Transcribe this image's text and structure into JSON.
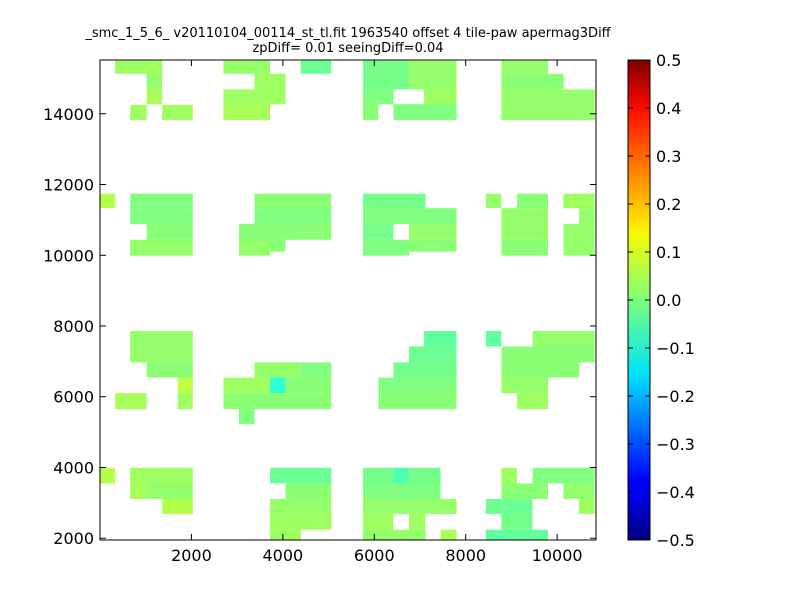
{
  "chart_data": {
    "type": "heatmap",
    "title": {
      "line1": "_smc_1_5_6_ v20110104_00114_st_tl.fit 1963540 offset 4 tile-paw apermag3Diff",
      "line2": "zpDiff= 0.01 seeingDiff=0.04"
    },
    "xlabel": "",
    "ylabel": "",
    "xlim": [
      0,
      10850
    ],
    "ylim": [
      1950,
      15520
    ],
    "x_ticks": [
      {
        "value": 2000,
        "label": "2000"
      },
      {
        "value": 4000,
        "label": "4000"
      },
      {
        "value": 6000,
        "label": "6000"
      },
      {
        "value": 8000,
        "label": "8000"
      },
      {
        "value": 10000,
        "label": "10000"
      }
    ],
    "y_ticks": [
      {
        "value": 2000,
        "label": "2000"
      },
      {
        "value": 4000,
        "label": "4000"
      },
      {
        "value": 6000,
        "label": "6000"
      },
      {
        "value": 8000,
        "label": "8000"
      },
      {
        "value": 10000,
        "label": "10000"
      },
      {
        "value": 12000,
        "label": "12000"
      },
      {
        "value": 14000,
        "label": "14000"
      }
    ],
    "colorbar": {
      "colormap": "jet",
      "range": [
        -0.5,
        0.5
      ],
      "ticks": [
        {
          "value": 0.5,
          "label": "0.5"
        },
        {
          "value": 0.4,
          "label": "0.4"
        },
        {
          "value": 0.3,
          "label": "0.3"
        },
        {
          "value": 0.2,
          "label": "0.2"
        },
        {
          "value": 0.1,
          "label": "0.1"
        },
        {
          "value": 0.0,
          "label": "0.0"
        },
        {
          "value": -0.1,
          "label": "−0.1"
        },
        {
          "value": -0.2,
          "label": "−0.2"
        },
        {
          "value": -0.3,
          "label": "−0.3"
        },
        {
          "value": -0.4,
          "label": "−0.4"
        },
        {
          "value": -0.5,
          "label": "−0.5"
        }
      ]
    },
    "grid": false,
    "cell_size": {
      "dx": 340,
      "dy": 440
    },
    "rects": [
      {
        "x0": 330,
        "x1": 1360,
        "y0": 15130,
        "y1": 15500,
        "v": 0.03
      },
      {
        "x0": 1020,
        "x1": 1360,
        "y0": 14690,
        "y1": 15130,
        "v": 0.02
      },
      {
        "x0": 1020,
        "x1": 1360,
        "y0": 14270,
        "y1": 14690,
        "v": 0.04
      },
      {
        "x0": 660,
        "x1": 1020,
        "y0": 13820,
        "y1": 14250,
        "v": 0.03
      },
      {
        "x0": 1360,
        "x1": 2030,
        "y0": 13820,
        "y1": 14250,
        "v": 0.03
      },
      {
        "x0": 2700,
        "x1": 3720,
        "y0": 15130,
        "y1": 15500,
        "v": 0.02
      },
      {
        "x0": 2700,
        "x1": 4060,
        "y0": 14270,
        "y1": 14690,
        "v": 0.03
      },
      {
        "x0": 2700,
        "x1": 3720,
        "y0": 13820,
        "y1": 14270,
        "v": 0.04
      },
      {
        "x0": 3380,
        "x1": 4060,
        "y0": 14690,
        "y1": 15130,
        "v": 0.03
      },
      {
        "x0": 4390,
        "x1": 5060,
        "y0": 15130,
        "y1": 15500,
        "v": -0.02
      },
      {
        "x0": 5750,
        "x1": 6760,
        "y0": 14690,
        "y1": 15500,
        "v": -0.01
      },
      {
        "x0": 6760,
        "x1": 7800,
        "y0": 14690,
        "y1": 15500,
        "v": 0.02
      },
      {
        "x0": 5750,
        "x1": 6420,
        "y0": 14270,
        "y1": 14690,
        "v": 0.0
      },
      {
        "x0": 7090,
        "x1": 7800,
        "y0": 14270,
        "y1": 14690,
        "v": 0.03
      },
      {
        "x0": 5750,
        "x1": 6090,
        "y0": 13820,
        "y1": 14270,
        "v": 0.01
      },
      {
        "x0": 6420,
        "x1": 7800,
        "y0": 13820,
        "y1": 14270,
        "v": 0.0
      },
      {
        "x0": 8780,
        "x1": 9800,
        "y0": 15130,
        "y1": 15500,
        "v": 0.02
      },
      {
        "x0": 8780,
        "x1": 10140,
        "y0": 14690,
        "y1": 15130,
        "v": 0.01
      },
      {
        "x0": 8780,
        "x1": 10820,
        "y0": 13820,
        "y1": 14690,
        "v": 0.02
      },
      {
        "x0": 0,
        "x1": 330,
        "y0": 11330,
        "y1": 11740,
        "v": 0.05
      },
      {
        "x0": 660,
        "x1": 2030,
        "y0": 11330,
        "y1": 11740,
        "v": 0.0
      },
      {
        "x0": 660,
        "x1": 2030,
        "y0": 10880,
        "y1": 11330,
        "v": 0.0
      },
      {
        "x0": 1020,
        "x1": 2030,
        "y0": 10440,
        "y1": 10880,
        "v": 0.01
      },
      {
        "x0": 660,
        "x1": 2030,
        "y0": 9990,
        "y1": 10440,
        "v": 0.02
      },
      {
        "x0": 3380,
        "x1": 5060,
        "y0": 11330,
        "y1": 11740,
        "v": 0.01
      },
      {
        "x0": 3380,
        "x1": 5060,
        "y0": 10880,
        "y1": 11330,
        "v": 0.0
      },
      {
        "x0": 3040,
        "x1": 5060,
        "y0": 10440,
        "y1": 10880,
        "v": 0.01
      },
      {
        "x0": 3040,
        "x1": 4390,
        "y0": 10440,
        "y1": 10500,
        "v": 0.01
      },
      {
        "x0": 3040,
        "x1": 3720,
        "y0": 9990,
        "y1": 10440,
        "v": 0.02
      },
      {
        "x0": 3720,
        "x1": 4060,
        "y0": 10100,
        "y1": 10440,
        "v": 0.01
      },
      {
        "x0": 5750,
        "x1": 7120,
        "y0": 11330,
        "y1": 11740,
        "v": -0.01
      },
      {
        "x0": 5750,
        "x1": 7800,
        "y0": 10880,
        "y1": 11330,
        "v": 0.0
      },
      {
        "x0": 5750,
        "x1": 6420,
        "y0": 10440,
        "y1": 10880,
        "v": -0.01
      },
      {
        "x0": 6760,
        "x1": 7800,
        "y0": 10440,
        "y1": 10880,
        "v": 0.02
      },
      {
        "x0": 5750,
        "x1": 6760,
        "y0": 9990,
        "y1": 10440,
        "v": 0.0
      },
      {
        "x0": 6760,
        "x1": 7800,
        "y0": 10100,
        "y1": 10440,
        "v": 0.01
      },
      {
        "x0": 8440,
        "x1": 8780,
        "y0": 11330,
        "y1": 11740,
        "v": 0.02
      },
      {
        "x0": 9120,
        "x1": 9800,
        "y0": 11330,
        "y1": 11740,
        "v": 0.01
      },
      {
        "x0": 8780,
        "x1": 9800,
        "y0": 10880,
        "y1": 11330,
        "v": 0.02
      },
      {
        "x0": 8780,
        "x1": 9800,
        "y0": 10440,
        "y1": 10880,
        "v": 0.02
      },
      {
        "x0": 8780,
        "x1": 9800,
        "y0": 9990,
        "y1": 10440,
        "v": 0.01
      },
      {
        "x0": 10140,
        "x1": 10820,
        "y0": 11330,
        "y1": 11740,
        "v": 0.03
      },
      {
        "x0": 10480,
        "x1": 10820,
        "y0": 10880,
        "y1": 11330,
        "v": 0.02
      },
      {
        "x0": 10140,
        "x1": 10820,
        "y0": 9990,
        "y1": 10880,
        "v": 0.02
      },
      {
        "x0": 660,
        "x1": 2030,
        "y0": 7420,
        "y1": 7860,
        "v": 0.02
      },
      {
        "x0": 660,
        "x1": 2030,
        "y0": 6970,
        "y1": 7420,
        "v": 0.02
      },
      {
        "x0": 1020,
        "x1": 2030,
        "y0": 6540,
        "y1": 6970,
        "v": 0.01
      },
      {
        "x0": 1700,
        "x1": 2030,
        "y0": 6100,
        "y1": 6540,
        "v": 0.06
      },
      {
        "x0": 330,
        "x1": 1020,
        "y0": 5650,
        "y1": 6100,
        "v": 0.04
      },
      {
        "x0": 1700,
        "x1": 2030,
        "y0": 5650,
        "y1": 6100,
        "v": 0.03
      },
      {
        "x0": 3380,
        "x1": 4390,
        "y0": 6540,
        "y1": 6970,
        "v": 0.02
      },
      {
        "x0": 4390,
        "x1": 5060,
        "y0": 6540,
        "y1": 6970,
        "v": 0.0
      },
      {
        "x0": 2700,
        "x1": 3720,
        "y0": 6100,
        "y1": 6540,
        "v": 0.03
      },
      {
        "x0": 3720,
        "x1": 4060,
        "y0": 6100,
        "y1": 6540,
        "v": -0.08
      },
      {
        "x0": 4060,
        "x1": 5060,
        "y0": 6100,
        "y1": 6540,
        "v": 0.01
      },
      {
        "x0": 2700,
        "x1": 5060,
        "y0": 5650,
        "y1": 6100,
        "v": 0.01
      },
      {
        "x0": 3040,
        "x1": 3380,
        "y0": 5220,
        "y1": 5650,
        "v": 0.0
      },
      {
        "x0": 7090,
        "x1": 7800,
        "y0": 7420,
        "y1": 7860,
        "v": -0.03
      },
      {
        "x0": 6760,
        "x1": 7800,
        "y0": 6970,
        "y1": 7420,
        "v": -0.02
      },
      {
        "x0": 6420,
        "x1": 7800,
        "y0": 6540,
        "y1": 6970,
        "v": -0.01
      },
      {
        "x0": 6090,
        "x1": 7800,
        "y0": 6100,
        "y1": 6540,
        "v": 0.0
      },
      {
        "x0": 6090,
        "x1": 7800,
        "y0": 5650,
        "y1": 6100,
        "v": 0.01
      },
      {
        "x0": 8440,
        "x1": 8780,
        "y0": 7420,
        "y1": 7860,
        "v": -0.03
      },
      {
        "x0": 9460,
        "x1": 10820,
        "y0": 7420,
        "y1": 7860,
        "v": 0.02
      },
      {
        "x0": 8780,
        "x1": 10820,
        "y0": 6970,
        "y1": 7420,
        "v": 0.01
      },
      {
        "x0": 8780,
        "x1": 10480,
        "y0": 6540,
        "y1": 6970,
        "v": 0.01
      },
      {
        "x0": 8780,
        "x1": 9800,
        "y0": 6100,
        "y1": 6540,
        "v": 0.02
      },
      {
        "x0": 9120,
        "x1": 9800,
        "y0": 5650,
        "y1": 6100,
        "v": 0.03
      },
      {
        "x0": 0,
        "x1": 330,
        "y0": 3550,
        "y1": 3990,
        "v": 0.05
      },
      {
        "x0": 660,
        "x1": 2030,
        "y0": 3550,
        "y1": 3990,
        "v": 0.03
      },
      {
        "x0": 660,
        "x1": 1020,
        "y0": 3110,
        "y1": 3550,
        "v": 0.04
      },
      {
        "x0": 1020,
        "x1": 2030,
        "y0": 3110,
        "y1": 3550,
        "v": 0.02
      },
      {
        "x0": 1360,
        "x1": 2030,
        "y0": 2690,
        "y1": 3110,
        "v": 0.05
      },
      {
        "x0": 3720,
        "x1": 5060,
        "y0": 3550,
        "y1": 3990,
        "v": -0.02
      },
      {
        "x0": 4060,
        "x1": 5060,
        "y0": 3110,
        "y1": 3550,
        "v": 0.01
      },
      {
        "x0": 3720,
        "x1": 5060,
        "y0": 2690,
        "y1": 3110,
        "v": 0.02
      },
      {
        "x0": 3720,
        "x1": 5060,
        "y0": 2240,
        "y1": 2690,
        "v": 0.03
      },
      {
        "x0": 3720,
        "x1": 4390,
        "y0": 1950,
        "y1": 2240,
        "v": 0.03
      },
      {
        "x0": 5750,
        "x1": 7450,
        "y0": 3550,
        "y1": 3990,
        "v": -0.01
      },
      {
        "x0": 6420,
        "x1": 6760,
        "y0": 3550,
        "y1": 3990,
        "v": -0.05
      },
      {
        "x0": 5750,
        "x1": 7450,
        "y0": 3110,
        "y1": 3550,
        "v": 0.0
      },
      {
        "x0": 5750,
        "x1": 7800,
        "y0": 2690,
        "y1": 3110,
        "v": 0.02
      },
      {
        "x0": 5750,
        "x1": 6420,
        "y0": 2240,
        "y1": 2690,
        "v": 0.03
      },
      {
        "x0": 6760,
        "x1": 7120,
        "y0": 2240,
        "y1": 2690,
        "v": 0.03
      },
      {
        "x0": 5750,
        "x1": 7120,
        "y0": 1950,
        "y1": 2240,
        "v": 0.02
      },
      {
        "x0": 7450,
        "x1": 7800,
        "y0": 1950,
        "y1": 2240,
        "v": 0.04
      },
      {
        "x0": 8780,
        "x1": 9120,
        "y0": 3550,
        "y1": 3990,
        "v": 0.03
      },
      {
        "x0": 9460,
        "x1": 10820,
        "y0": 3550,
        "y1": 3990,
        "v": 0.0
      },
      {
        "x0": 8780,
        "x1": 9800,
        "y0": 3110,
        "y1": 3550,
        "v": 0.01
      },
      {
        "x0": 10140,
        "x1": 10820,
        "y0": 3110,
        "y1": 3550,
        "v": 0.02
      },
      {
        "x0": 8440,
        "x1": 9460,
        "y0": 2690,
        "y1": 3110,
        "v": -0.02
      },
      {
        "x0": 10480,
        "x1": 10820,
        "y0": 2690,
        "y1": 3110,
        "v": 0.03
      },
      {
        "x0": 8780,
        "x1": 9460,
        "y0": 2240,
        "y1": 2690,
        "v": -0.01
      },
      {
        "x0": 8440,
        "x1": 9800,
        "y0": 1950,
        "y1": 2240,
        "v": -0.03
      }
    ]
  }
}
